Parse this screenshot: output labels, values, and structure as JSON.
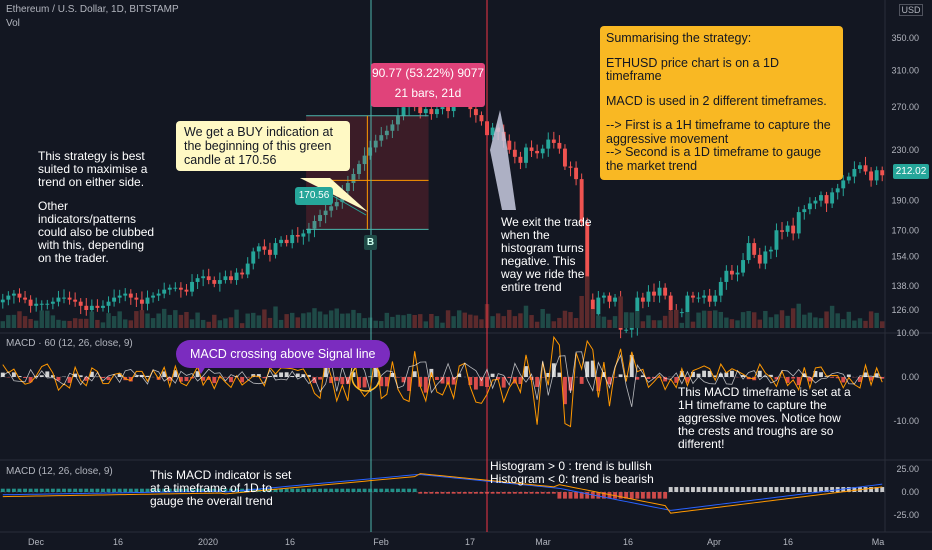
{
  "header": {
    "symbol": "Ethereum / U.S. Dollar, 1D, BITSTAMP",
    "vol": "Vol",
    "currency_top": "USD",
    "last_price": "212.02",
    "macd60_label": "MACD · 60 (12, 26, close, 9)",
    "macd1d_label": "MACD (12, 26, close, 9)"
  },
  "annotations": {
    "left_note_1": "This strategy is best suited to maximise a trend on either side.",
    "left_note_2": "Other indicators/patterns could also be clubbed with this, depending on the trader.",
    "buy_callout": "We get a BUY indication at the beginning of this green candle at 170.56",
    "buy_price_tag": "170.56",
    "buy_marker": "B",
    "trade_result_line1": "90.77 (53.22%) 9077",
    "trade_result_line2": "21 bars, 21d",
    "exit_note": "We exit the trade when the histogram turns negative. This way we ride the entire trend",
    "summary_title": "Summarising the strategy:",
    "summary_p1": "ETHUSD price chart is on a 1D timeframe",
    "summary_p2": "MACD is used in 2 different timeframes.",
    "summary_p3": "--> First is a 1H timeframe to capture the aggressive movement\n--> Second is a 1D timeframe to gauge the market trend",
    "macd_cross_pill": "MACD crossing above Signal line",
    "macd60_note": "This MACD timeframe is set at a 1H timeframe to capture the aggressive moves. Notice how the crests and troughs are so different!",
    "macd1d_note": "This MACD indicator is set at a timeframe of 1D to gauge the overall trend",
    "hist_note_1": "Histogram > 0 : trend is bullish",
    "hist_note_2": "Histogram < 0: trend is bearish"
  },
  "colors": {
    "background": "#131722",
    "up": "#26a69a",
    "down": "#ef5350",
    "macd_line": "#2962ff",
    "signal_line": "#ff9800",
    "vertical_entry": "#4db6ac",
    "vertical_exit": "#f23645",
    "summary_bg": "#f9b823",
    "trade_box": "#e0437a"
  },
  "chart_data": {
    "type": "candlestick",
    "price_axis": {
      "ticks": [
        "350.00",
        "310.00",
        "270.00",
        "230.00",
        "190.00",
        "170.00",
        "154.00",
        "138.00",
        "126.00"
      ],
      "scale": "log"
    },
    "macd60_axis": {
      "ticks": [
        "10.00",
        "0.00",
        "-10.00"
      ]
    },
    "macd1d_axis": {
      "ticks": [
        "25.00",
        "0.00",
        "-25.00"
      ]
    },
    "x_ticks": [
      "Dec",
      "16",
      "2020",
      "16",
      "Feb",
      "17",
      "Mar",
      "16",
      "Apr",
      "16",
      "Ma"
    ],
    "entry": {
      "price": 170.56,
      "label": "B"
    },
    "trade": {
      "change": 90.77,
      "change_pct": 53.22,
      "bars": 21
    },
    "close_series": [
      131,
      133,
      134,
      132,
      131,
      128,
      129,
      129,
      129,
      130,
      132,
      132,
      131,
      130,
      128,
      126,
      128,
      127,
      128,
      130,
      132,
      133,
      134,
      132,
      131,
      129,
      132,
      133,
      134,
      136,
      137,
      137,
      136,
      135,
      140,
      142,
      143,
      141,
      139,
      141,
      143,
      141,
      145,
      144,
      150,
      157,
      160,
      158,
      155,
      162,
      164,
      162,
      167,
      166,
      168,
      171,
      176,
      180,
      183,
      186,
      189,
      197,
      203,
      210,
      218,
      225,
      232,
      238,
      243,
      247,
      253,
      261,
      270,
      275,
      270,
      264,
      268,
      263,
      268,
      270,
      266,
      275,
      283,
      277,
      268,
      262,
      256,
      243,
      250,
      246,
      238,
      230,
      224,
      219,
      232,
      229,
      227,
      231,
      239,
      236,
      231,
      216,
      215,
      206,
      175,
      131,
      124,
      132,
      133,
      130,
      132,
      117,
      117,
      118,
      132,
      130,
      135,
      133,
      137,
      133,
      126,
      125,
      125,
      133,
      132,
      132,
      133,
      130,
      133,
      140,
      146,
      144,
      145,
      152,
      162,
      155,
      150,
      157,
      158,
      170,
      169,
      173,
      168,
      182,
      184,
      188,
      190,
      194,
      188,
      196,
      199,
      205,
      208,
      214,
      217,
      212,
      205,
      213,
      209
    ]
  }
}
